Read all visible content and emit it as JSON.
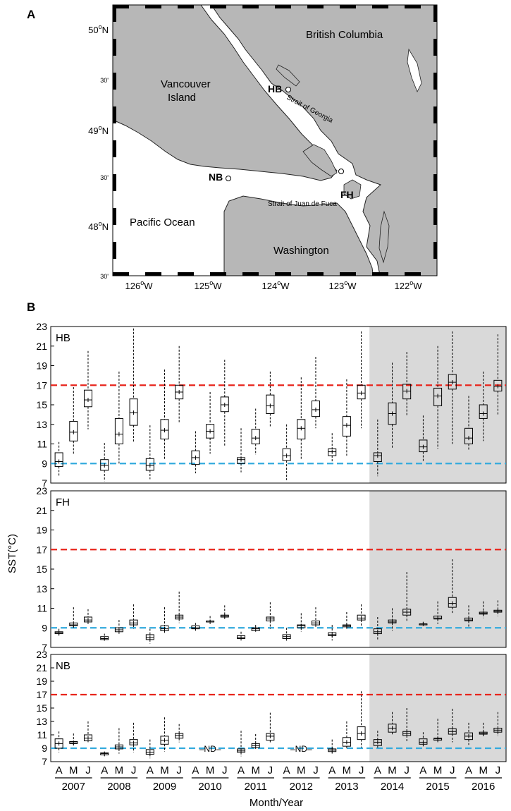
{
  "panel_a": {
    "label": "A",
    "lat_ticks": [
      {
        "deg": "50",
        "min": ""
      },
      {
        "deg": "",
        "min": "30'"
      },
      {
        "deg": "49",
        "min": ""
      },
      {
        "deg": "",
        "min": "30'"
      },
      {
        "deg": "48",
        "min": ""
      },
      {
        "deg": "",
        "min": "30'"
      }
    ],
    "lat_suffix": "N",
    "lon_ticks": [
      "126",
      "125",
      "124",
      "123",
      "122"
    ],
    "lon_suffix": "W",
    "place_labels": {
      "bc": "British Columbia",
      "vi1": "Vancouver",
      "vi2": "Island",
      "sog": "Strait of Georgia",
      "sjf": "Strait of Juan de Fuca",
      "pacific": "Pacific Ocean",
      "washington": "Washington"
    },
    "sites": [
      "HB",
      "NB",
      "FH"
    ]
  },
  "panel_b": {
    "label": "B",
    "ylabel": "SST(°C)",
    "xlabel": "Month/Year",
    "nd_label": "–ND–",
    "colors": {
      "upper_threshold": "#e8251c",
      "lower_threshold": "#33aadd",
      "shade": "#d9d9d9"
    }
  },
  "chart_data": {
    "type": "box",
    "y_ticks": [
      7,
      9,
      11,
      13,
      15,
      17,
      19,
      21,
      23
    ],
    "ylim": [
      7,
      23
    ],
    "years": [
      "2007",
      "2008",
      "2009",
      "2010",
      "2011",
      "2012",
      "2013",
      "2014",
      "2015",
      "2016"
    ],
    "months": [
      "A",
      "M",
      "J"
    ],
    "shaded_years": [
      "2014",
      "2015",
      "2016"
    ],
    "thresholds": {
      "upper": 17,
      "lower": 9
    },
    "panels": [
      {
        "site": "HB",
        "boxes": [
          [
            [
              7.7,
              8.7,
              9.2,
              10.1,
              11.2
            ],
            [
              9.9,
              11.3,
              12.2,
              13.3,
              16.8
            ],
            [
              12.5,
              14.8,
              15.5,
              16.5,
              20.5
            ]
          ],
          [
            [
              7.2,
              8.3,
              8.8,
              9.4,
              11.1
            ],
            [
              9.0,
              11.0,
              12.0,
              13.6,
              18.4
            ],
            [
              11.2,
              12.9,
              14.2,
              15.6,
              22.8
            ]
          ],
          [
            [
              7.4,
              8.3,
              8.8,
              9.5,
              12.9
            ],
            [
              9.4,
              11.5,
              12.4,
              13.5,
              18.6
            ],
            [
              13.1,
              15.6,
              16.3,
              17.0,
              21.0
            ]
          ],
          [
            [
              8.0,
              8.9,
              9.6,
              10.3,
              12.3
            ],
            [
              10.0,
              11.6,
              12.3,
              13.0,
              16.3
            ],
            [
              10.7,
              14.3,
              15.0,
              15.8,
              19.6
            ]
          ],
          [
            [
              8.1,
              9.0,
              9.4,
              9.6,
              12.6
            ],
            [
              9.9,
              11.0,
              11.6,
              12.5,
              14.6
            ],
            [
              12.8,
              14.1,
              14.9,
              16.0,
              18.4
            ]
          ],
          [
            [
              7.3,
              9.3,
              9.8,
              10.5,
              13.0
            ],
            [
              9.4,
              11.5,
              12.6,
              13.5,
              17.8
            ],
            [
              12.6,
              13.8,
              14.5,
              15.4,
              19.9
            ]
          ],
          [
            [
              9.2,
              9.8,
              10.2,
              10.5,
              12.1
            ],
            [
              9.8,
              11.8,
              12.9,
              13.8,
              17.6
            ],
            [
              12.6,
              15.6,
              16.2,
              17.0,
              22.5
            ]
          ],
          [
            [
              7.7,
              9.2,
              9.8,
              10.1,
              13.5
            ],
            [
              10.6,
              13.0,
              14.1,
              15.2,
              19.3
            ],
            [
              13.9,
              15.6,
              16.4,
              17.1,
              20.4
            ]
          ],
          [
            [
              9.2,
              10.2,
              10.7,
              11.4,
              13.9
            ],
            [
              10.5,
              14.9,
              15.9,
              16.7,
              21.0
            ],
            [
              11.0,
              16.6,
              17.3,
              18.1,
              22.5
            ]
          ],
          [
            [
              10.4,
              11.0,
              11.6,
              12.6,
              15.9
            ],
            [
              11.3,
              13.6,
              14.1,
              15.0,
              18.4
            ],
            [
              13.9,
              16.4,
              16.9,
              17.5,
              22.2
            ]
          ]
        ]
      },
      {
        "site": "FH",
        "boxes": [
          [
            [
              8.2,
              8.4,
              8.5,
              8.6,
              8.9
            ],
            [
              9.0,
              9.2,
              9.3,
              9.5,
              11.1
            ],
            [
              9.3,
              9.6,
              9.8,
              10.1,
              10.9
            ]
          ],
          [
            [
              7.7,
              7.8,
              7.9,
              8.1,
              8.4
            ],
            [
              8.3,
              8.6,
              8.8,
              9.0,
              9.8
            ],
            [
              8.9,
              9.3,
              9.5,
              9.8,
              11.4
            ]
          ],
          [
            [
              7.4,
              7.8,
              8.0,
              8.3,
              8.9
            ],
            [
              8.5,
              8.7,
              8.9,
              9.2,
              11.1
            ],
            [
              9.5,
              9.9,
              10.1,
              10.3,
              12.7
            ]
          ],
          [
            [
              8.7,
              8.9,
              9.0,
              9.2,
              9.5
            ],
            [
              9.6,
              9.6,
              9.6,
              9.7,
              10.2
            ],
            [
              9.9,
              10.1,
              10.2,
              10.3,
              11.3
            ]
          ],
          [
            [
              7.7,
              7.9,
              8.0,
              8.2,
              8.6
            ],
            [
              8.6,
              8.7,
              8.9,
              9.0,
              9.3
            ],
            [
              8.9,
              9.7,
              9.9,
              10.1,
              11.6
            ]
          ],
          [
            [
              7.6,
              7.9,
              8.1,
              8.3,
              9.0
            ],
            [
              8.6,
              9.0,
              9.2,
              9.3,
              10.5
            ],
            [
              9.1,
              9.3,
              9.5,
              9.7,
              11.1
            ]
          ],
          [
            [
              7.7,
              8.2,
              8.3,
              8.5,
              9.3
            ],
            [
              8.9,
              9.1,
              9.2,
              9.3,
              10.6
            ],
            [
              9.1,
              9.8,
              10.0,
              10.3,
              11.4
            ]
          ],
          [
            [
              7.8,
              8.4,
              8.6,
              8.9,
              10.1
            ],
            [
              8.7,
              9.5,
              9.6,
              9.8,
              11.0
            ],
            [
              9.6,
              10.3,
              10.6,
              10.9,
              14.7
            ]
          ],
          [
            [
              9.2,
              9.3,
              9.4,
              9.4,
              9.6
            ],
            [
              9.4,
              9.9,
              10.0,
              10.2,
              11.7
            ],
            [
              10.4,
              11.1,
              11.5,
              12.1,
              16.0
            ]
          ],
          [
            [
              9.1,
              9.7,
              9.8,
              10.0,
              11.3
            ],
            [
              10.0,
              10.4,
              10.5,
              10.6,
              11.7
            ],
            [
              10.2,
              10.6,
              10.7,
              10.8,
              11.8
            ]
          ]
        ]
      },
      {
        "site": "NB",
        "boxes": [
          [
            [
              8.4,
              9.0,
              9.7,
              10.4,
              11.5
            ],
            [
              9.4,
              9.7,
              9.8,
              10.0,
              11.2
            ],
            [
              9.9,
              10.1,
              10.5,
              11.0,
              13.0
            ]
          ],
          [
            [
              7.8,
              8.0,
              8.2,
              8.3,
              8.4
            ],
            [
              8.2,
              8.9,
              9.2,
              9.5,
              12.0
            ],
            [
              8.4,
              9.5,
              9.8,
              10.3,
              12.8
            ]
          ],
          [
            [
              7.5,
              8.1,
              8.4,
              8.8,
              10.3
            ],
            [
              8.5,
              9.6,
              10.2,
              10.8,
              13.6
            ],
            [
              9.9,
              10.5,
              10.9,
              11.2,
              12.6
            ]
          ],
          null,
          [
            [
              7.8,
              8.4,
              8.6,
              8.9,
              11.6
            ],
            [
              8.9,
              9.1,
              9.4,
              9.7,
              11.1
            ],
            [
              9.7,
              10.2,
              10.8,
              11.2,
              14.3
            ]
          ],
          null,
          [
            [
              8.2,
              8.5,
              8.7,
              8.9,
              10.3
            ],
            [
              8.9,
              9.3,
              9.9,
              10.6,
              13.0
            ],
            [
              9.1,
              10.3,
              11.2,
              12.2,
              17.5
            ]
          ],
          [
            [
              9.0,
              9.4,
              9.9,
              10.3,
              11.6
            ],
            [
              10.9,
              11.4,
              12.0,
              12.6,
              14.4
            ],
            [
              9.9,
              10.9,
              11.2,
              11.5,
              15.0
            ]
          ],
          [
            [
              9.1,
              9.6,
              9.9,
              10.4,
              11.4
            ],
            [
              9.9,
              10.2,
              10.4,
              10.5,
              13.4
            ],
            [
              9.9,
              11.1,
              11.5,
              11.9,
              14.9
            ]
          ],
          [
            [
              9.5,
              10.3,
              10.8,
              11.3,
              12.8
            ],
            [
              10.7,
              11.1,
              11.2,
              11.4,
              12.8
            ],
            [
              10.8,
              11.4,
              11.7,
              12.0,
              14.4
            ]
          ]
        ]
      }
    ],
    "nd_years": [
      "2010",
      "2012"
    ]
  }
}
